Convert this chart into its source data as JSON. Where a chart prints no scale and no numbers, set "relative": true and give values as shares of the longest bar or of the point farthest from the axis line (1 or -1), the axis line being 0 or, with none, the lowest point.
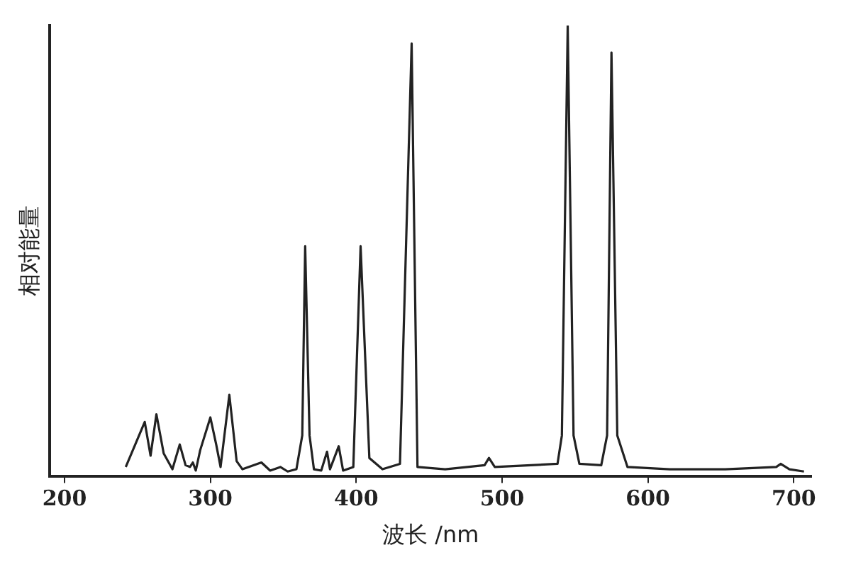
{
  "chart_data": {
    "type": "line",
    "xlabel": "波长 /nm",
    "ylabel": "相对能量",
    "relative": true,
    "grid": false,
    "legend": false,
    "marker": "none",
    "line_style": "solid",
    "xlim": [
      190,
      712
    ],
    "xticks": [
      200,
      300,
      400,
      500,
      600,
      700
    ],
    "x": [
      242,
      255,
      259,
      263,
      268,
      274,
      279,
      283,
      286,
      288,
      290,
      293,
      300,
      304,
      307,
      313,
      318,
      322,
      335,
      341,
      348,
      353,
      359,
      363,
      365,
      368,
      371,
      376,
      380,
      382,
      388,
      391,
      398,
      403,
      409,
      418,
      430,
      438,
      442,
      461,
      488,
      491,
      495,
      538,
      541,
      545,
      549,
      553,
      568,
      572,
      575,
      579,
      586,
      615,
      653,
      688,
      691,
      697,
      707
    ],
    "series": [
      {
        "color": "#222222",
        "values": [
          0.02,
          0.12,
          0.045,
          0.137,
          0.05,
          0.015,
          0.07,
          0.024,
          0.02,
          0.03,
          0.012,
          0.057,
          0.13,
          0.07,
          0.02,
          0.18,
          0.033,
          0.015,
          0.03,
          0.012,
          0.02,
          0.01,
          0.015,
          0.09,
          0.51,
          0.09,
          0.015,
          0.012,
          0.054,
          0.015,
          0.066,
          0.012,
          0.02,
          0.51,
          0.04,
          0.015,
          0.027,
          0.96,
          0.02,
          0.015,
          0.024,
          0.04,
          0.02,
          0.027,
          0.09,
          1.0,
          0.09,
          0.027,
          0.024,
          0.09,
          0.94,
          0.09,
          0.02,
          0.015,
          0.015,
          0.02,
          0.027,
          0.015,
          0.01
        ]
      }
    ]
  }
}
